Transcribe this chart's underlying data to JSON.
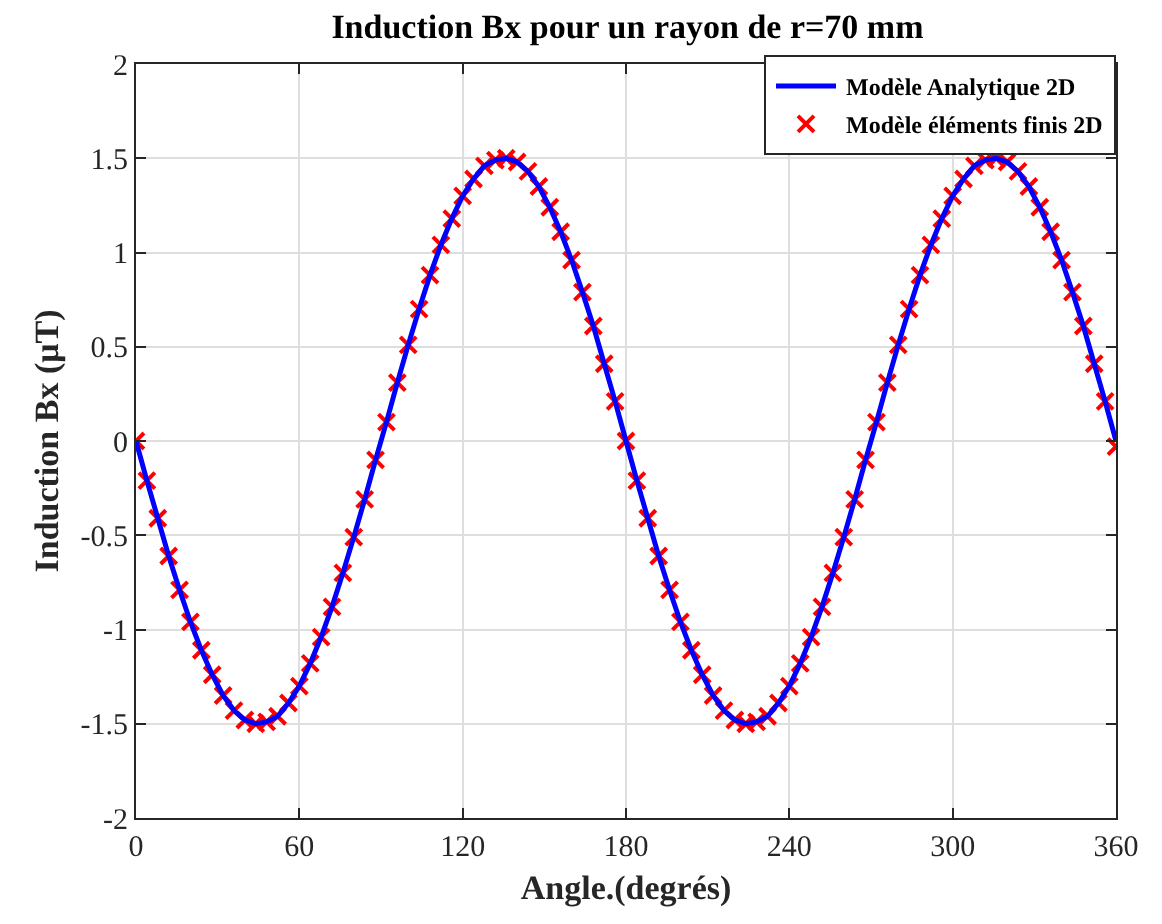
{
  "chart_data": {
    "type": "line",
    "title": "Induction Bx pour un rayon de r=70 mm",
    "xlabel": "Angle.(degrés)",
    "ylabel": "Induction Bx (μT)",
    "x": [
      0,
      4,
      8,
      12,
      16,
      20,
      24,
      28,
      32,
      36,
      40,
      44,
      48,
      52,
      56,
      60,
      64,
      68,
      72,
      76,
      80,
      84,
      88,
      92,
      96,
      100,
      104,
      108,
      112,
      116,
      120,
      124,
      128,
      132,
      136,
      140,
      144,
      148,
      152,
      156,
      160,
      164,
      168,
      172,
      176,
      180,
      184,
      188,
      192,
      196,
      200,
      204,
      208,
      212,
      216,
      220,
      224,
      228,
      232,
      236,
      240,
      244,
      248,
      252,
      256,
      260,
      264,
      268,
      272,
      276,
      280,
      284,
      288,
      292,
      296,
      300,
      304,
      308,
      312,
      316,
      320,
      324,
      328,
      332,
      336,
      340,
      344,
      348,
      352,
      356,
      360
    ],
    "series": [
      {
        "name": "Modèle Analytique 2D",
        "color": "#0000ff",
        "marker": "none",
        "line_style": "solid",
        "values": [
          0,
          -0.21,
          -0.41,
          -0.61,
          -0.79,
          -0.96,
          -1.11,
          -1.24,
          -1.35,
          -1.43,
          -1.48,
          -1.5,
          -1.49,
          -1.46,
          -1.39,
          -1.3,
          -1.18,
          -1.04,
          -0.88,
          -0.7,
          -0.51,
          -0.31,
          -0.1,
          0.1,
          0.31,
          0.51,
          0.7,
          0.88,
          1.04,
          1.18,
          1.3,
          1.39,
          1.46,
          1.49,
          1.5,
          1.48,
          1.43,
          1.35,
          1.24,
          1.11,
          0.96,
          0.79,
          0.61,
          0.41,
          0.21,
          0,
          -0.21,
          -0.41,
          -0.61,
          -0.79,
          -0.96,
          -1.11,
          -1.24,
          -1.35,
          -1.43,
          -1.48,
          -1.5,
          -1.49,
          -1.46,
          -1.39,
          -1.3,
          -1.18,
          -1.04,
          -0.88,
          -0.7,
          -0.51,
          -0.31,
          -0.1,
          0.1,
          0.31,
          0.51,
          0.7,
          0.88,
          1.04,
          1.18,
          1.3,
          1.39,
          1.46,
          1.49,
          1.5,
          1.48,
          1.43,
          1.35,
          1.24,
          1.11,
          0.96,
          0.79,
          0.61,
          0.41,
          0.21,
          0
        ]
      },
      {
        "name": "Modèle éléments finis 2D",
        "type": "scatter",
        "color": "#ff0000",
        "marker": "cross",
        "values": [
          0,
          -0.21,
          -0.41,
          -0.61,
          -0.79,
          -0.96,
          -1.11,
          -1.24,
          -1.35,
          -1.43,
          -1.48,
          -1.5,
          -1.49,
          -1.46,
          -1.39,
          -1.3,
          -1.18,
          -1.04,
          -0.88,
          -0.7,
          -0.51,
          -0.31,
          -0.1,
          0.1,
          0.31,
          0.51,
          0.7,
          0.88,
          1.04,
          1.18,
          1.3,
          1.39,
          1.46,
          1.49,
          1.5,
          1.48,
          1.43,
          1.35,
          1.24,
          1.11,
          0.96,
          0.79,
          0.61,
          0.41,
          0.21,
          0,
          -0.21,
          -0.41,
          -0.61,
          -0.79,
          -0.96,
          -1.11,
          -1.24,
          -1.35,
          -1.43,
          -1.48,
          -1.5,
          -1.49,
          -1.46,
          -1.39,
          -1.3,
          -1.18,
          -1.04,
          -0.88,
          -0.7,
          -0.51,
          -0.31,
          -0.1,
          0.1,
          0.31,
          0.51,
          0.7,
          0.88,
          1.04,
          1.18,
          1.3,
          1.39,
          1.46,
          1.49,
          1.5,
          1.48,
          1.43,
          1.35,
          1.24,
          1.11,
          0.96,
          0.79,
          0.61,
          0.41,
          0.21,
          -0.03
        ]
      }
    ],
    "xlim": [
      0,
      360
    ],
    "xticks": [
      0,
      60,
      120,
      180,
      240,
      300,
      360
    ],
    "ylim": [
      -2,
      2
    ],
    "yticks": [
      -2,
      -1.5,
      -1,
      -0.5,
      0,
      0.5,
      1,
      1.5,
      2
    ],
    "grid": true,
    "legend": "top right"
  }
}
